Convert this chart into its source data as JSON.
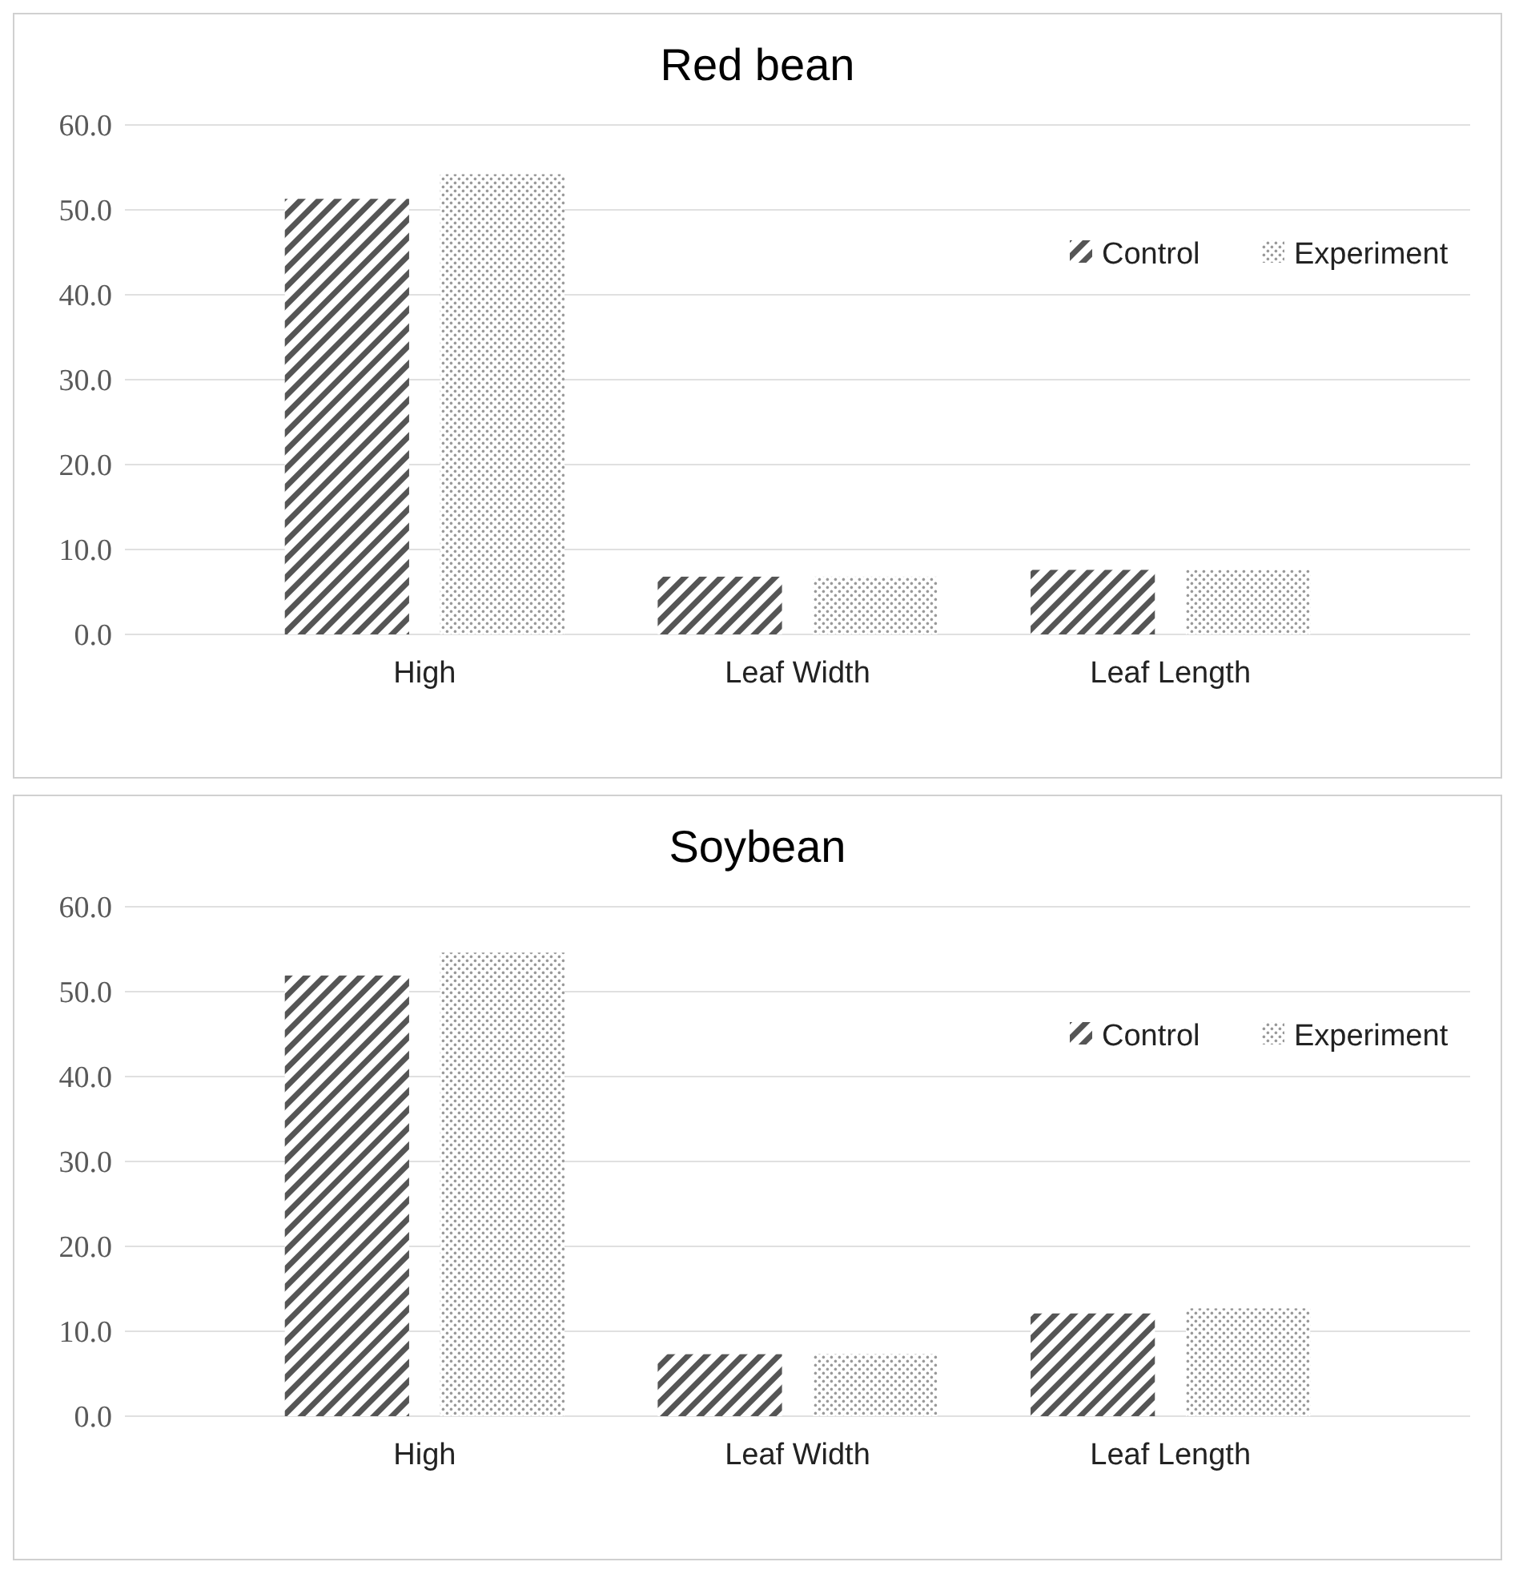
{
  "chart_data": [
    {
      "type": "bar",
      "title": "Red bean",
      "categories": [
        "High",
        "Leaf Width",
        "Leaf Length"
      ],
      "series": [
        {
          "name": "Control",
          "color": "#555555",
          "values": [
            51.3,
            6.8,
            7.6
          ]
        },
        {
          "name": "Experiment",
          "color": "#999999",
          "values": [
            54.2,
            6.8,
            7.6
          ]
        }
      ],
      "ylim": [
        0,
        60
      ],
      "yticks": [
        {
          "value": 0,
          "label": "0.0"
        },
        {
          "value": 10,
          "label": "10.0"
        },
        {
          "value": 20,
          "label": "20.0"
        },
        {
          "value": 30,
          "label": "30.0"
        },
        {
          "value": 40,
          "label": "40.0"
        },
        {
          "value": 50,
          "label": "50.0"
        },
        {
          "value": 60,
          "label": "60.0"
        }
      ],
      "grid": "y",
      "legend": "top right"
    },
    {
      "type": "bar",
      "title": "Soybean",
      "categories": [
        "High",
        "Leaf Width",
        "Leaf Length"
      ],
      "series": [
        {
          "name": "Control",
          "color": "#555555",
          "values": [
            51.9,
            7.3,
            12.1
          ]
        },
        {
          "name": "Experiment",
          "color": "#999999",
          "values": [
            54.6,
            7.3,
            12.7
          ]
        }
      ],
      "ylim": [
        0,
        60
      ],
      "yticks": [
        {
          "value": 0,
          "label": "0.0"
        },
        {
          "value": 10,
          "label": "10.0"
        },
        {
          "value": 20,
          "label": "20.0"
        },
        {
          "value": 30,
          "label": "30.0"
        },
        {
          "value": 40,
          "label": "40.0"
        },
        {
          "value": 50,
          "label": "50.0"
        },
        {
          "value": 60,
          "label": "60.0"
        }
      ],
      "grid": "y",
      "legend": "top right"
    }
  ]
}
